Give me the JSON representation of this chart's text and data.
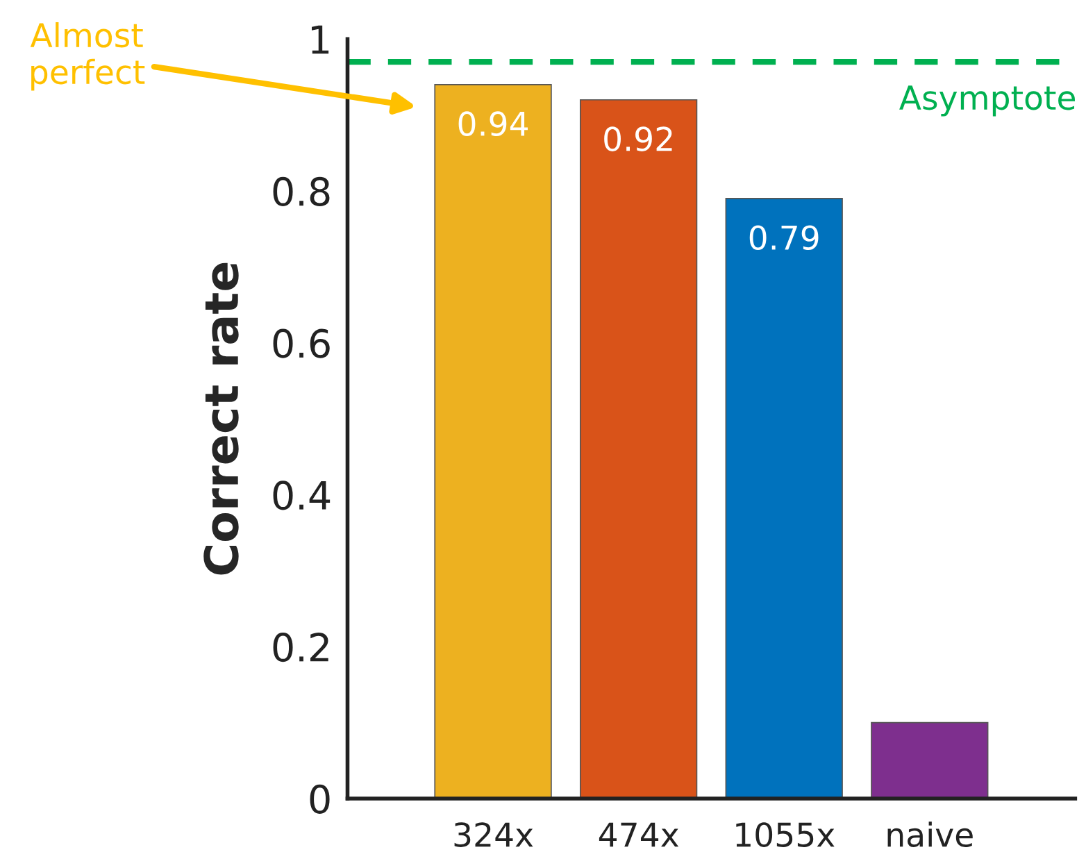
{
  "chart_data": {
    "type": "bar",
    "ylabel": "Correct rate",
    "categories": [
      "324x",
      "474x",
      "1055x",
      "naive"
    ],
    "values": [
      0.94,
      0.92,
      0.79,
      0.1
    ],
    "colors": [
      "#edb120",
      "#d95319",
      "#0072bd",
      "#7e2f8e"
    ],
    "value_labels": [
      "0.94",
      "0.92",
      "0.79",
      null
    ],
    "ylim": [
      0,
      1
    ],
    "yticks": [
      0,
      0.2,
      0.4,
      0.6,
      0.8,
      1
    ],
    "ref_lines": [
      {
        "axis": "y",
        "value": 0.97,
        "label": "Asymptote",
        "color": "#00b050",
        "line_style": "dashed"
      }
    ],
    "annotations": [
      "Almost perfect"
    ],
    "grid": false,
    "legend": false
  }
}
